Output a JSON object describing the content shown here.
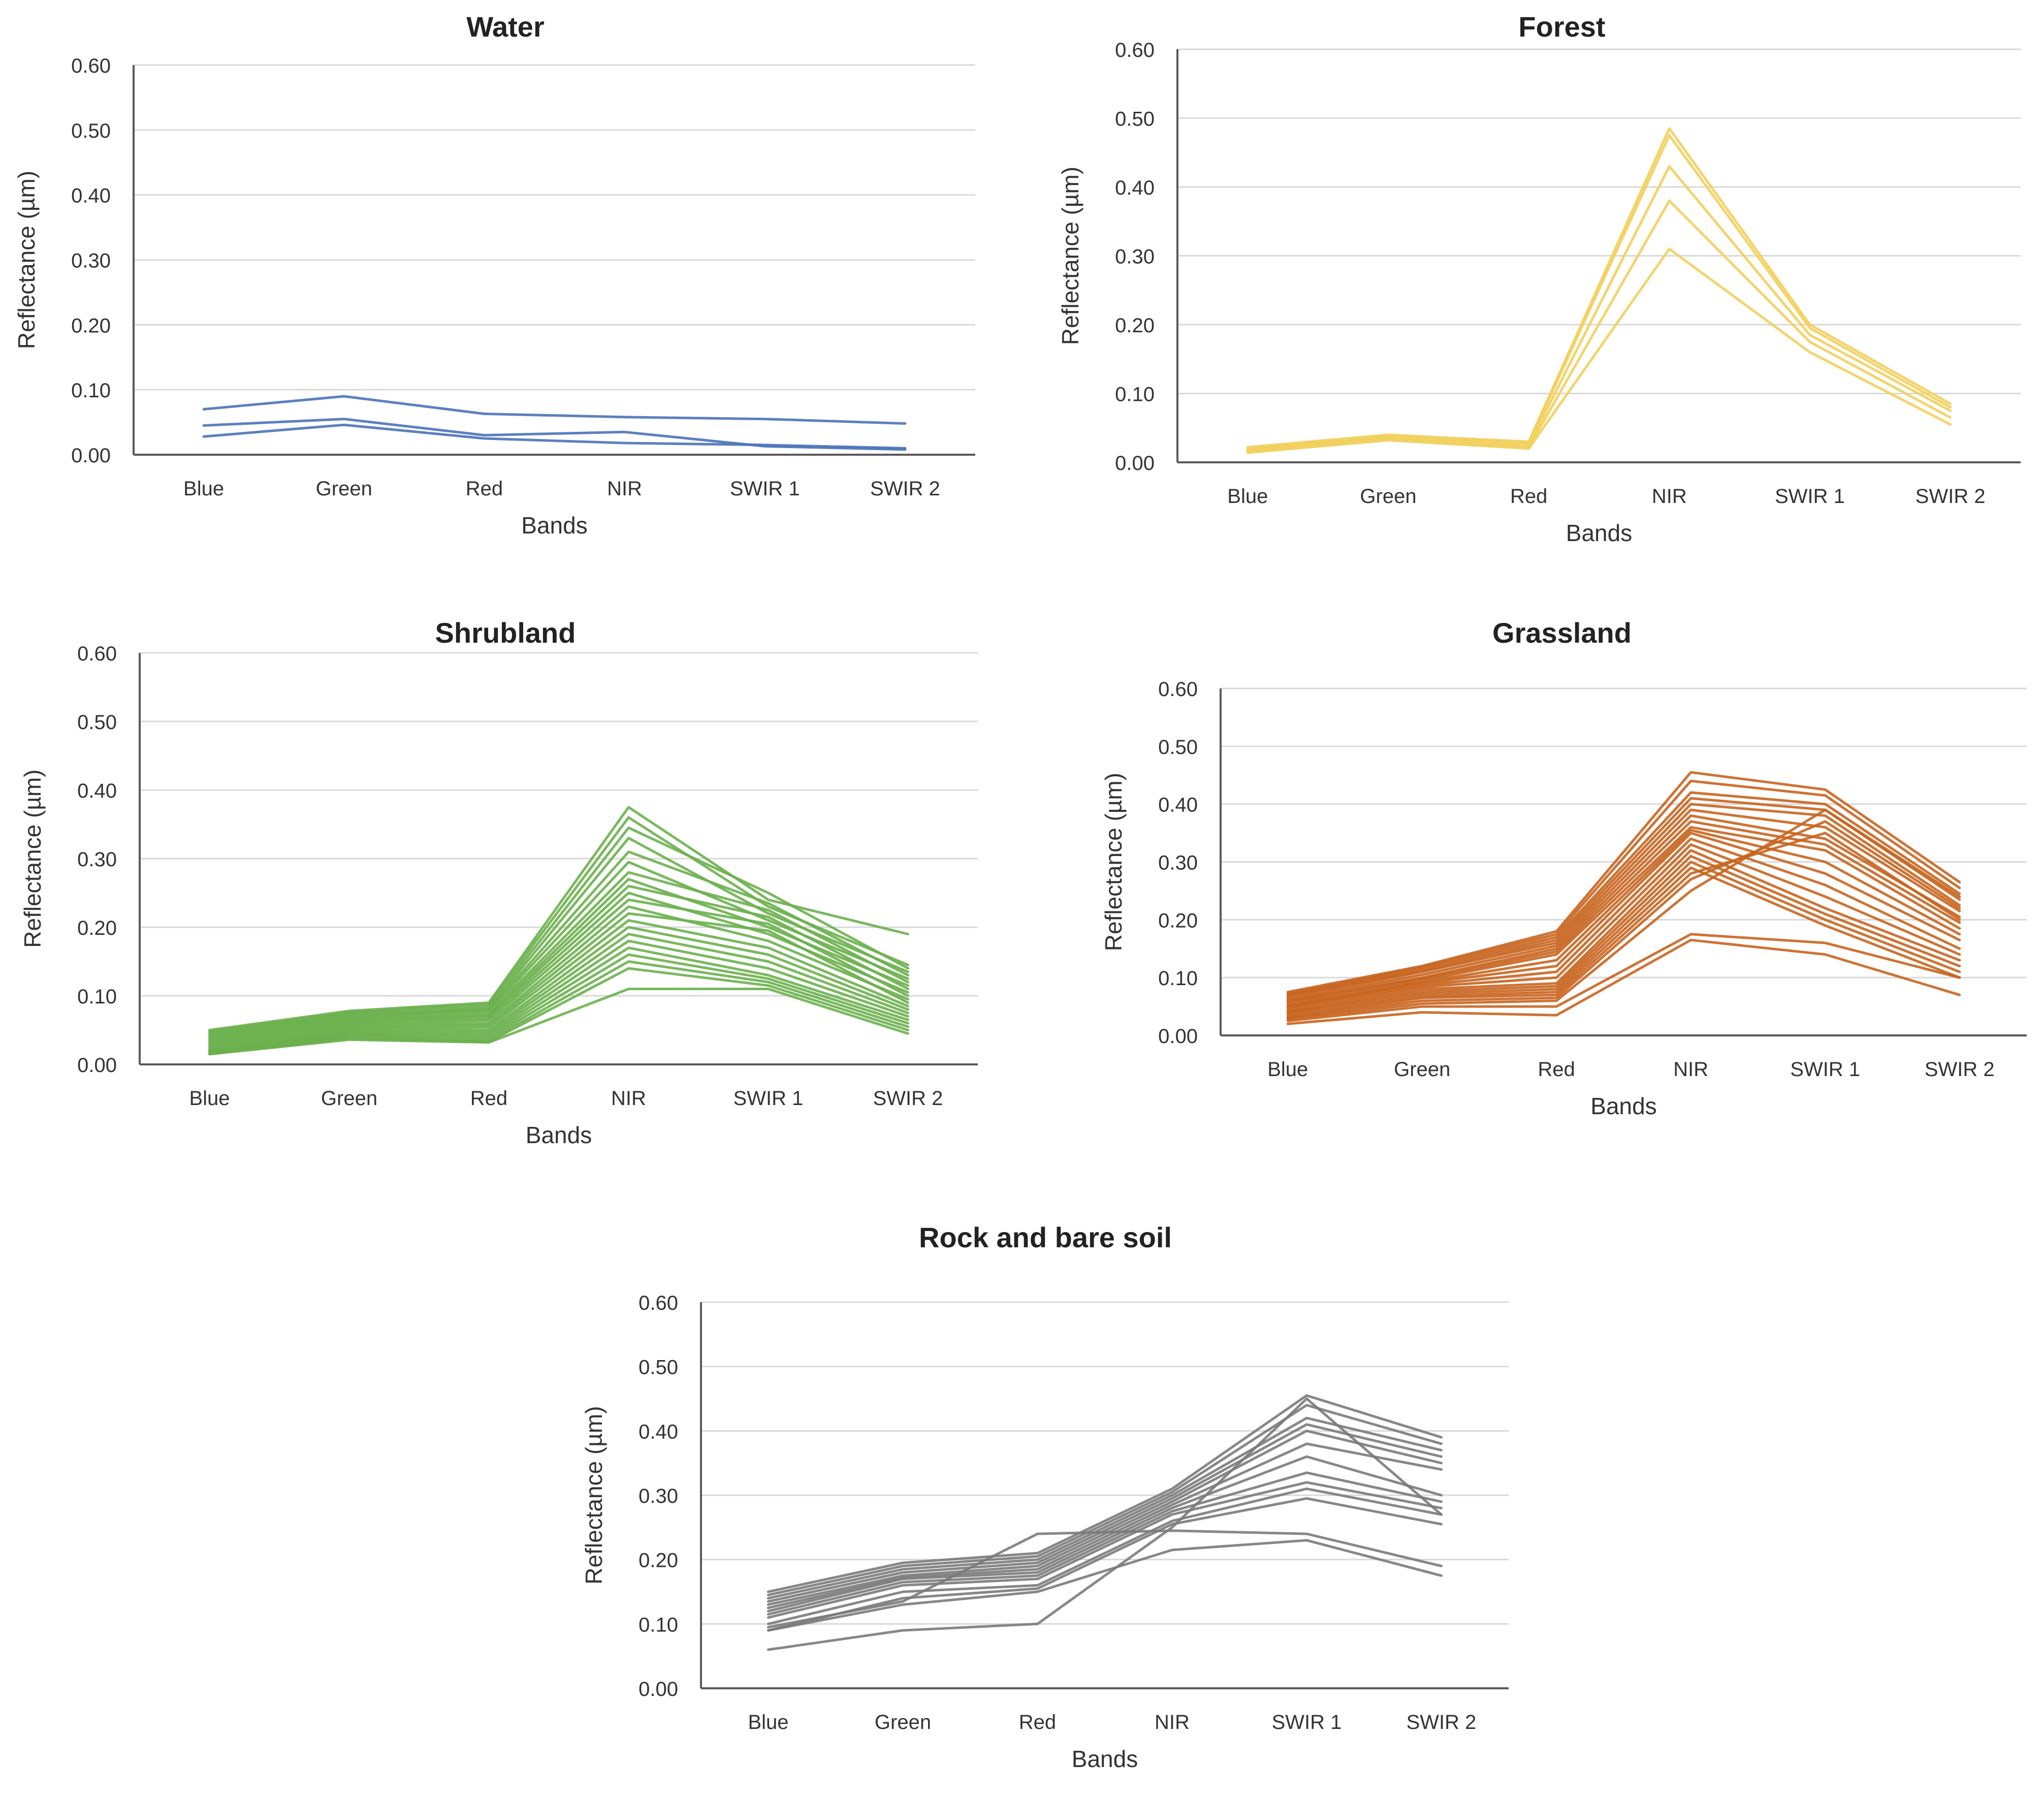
{
  "chart_data": [
    {
      "type": "line",
      "title": "Water",
      "xlabel": "Bands",
      "ylabel": "Reflectance (µm)",
      "categories": [
        "Blue",
        "Green",
        "Red",
        "NIR",
        "SWIR 1",
        "SWIR 2"
      ],
      "ylim": [
        0,
        0.6
      ],
      "yticks": [
        "0.00",
        "0.10",
        "0.20",
        "0.30",
        "0.40",
        "0.50",
        "0.60"
      ],
      "grid": true,
      "color": "#4a72b8",
      "series": [
        {
          "values": [
            0.07,
            0.09,
            0.063,
            0.058,
            0.055,
            0.048
          ]
        },
        {
          "values": [
            0.045,
            0.055,
            0.03,
            0.035,
            0.013,
            0.008
          ]
        },
        {
          "values": [
            0.028,
            0.046,
            0.025,
            0.018,
            0.015,
            0.01
          ]
        }
      ]
    },
    {
      "type": "line",
      "title": "Forest",
      "xlabel": "Bands",
      "ylabel": "Reflectance (µm)",
      "categories": [
        "Blue",
        "Green",
        "Red",
        "NIR",
        "SWIR 1",
        "SWIR 2"
      ],
      "ylim": [
        0,
        0.6
      ],
      "yticks": [
        "0.00",
        "0.10",
        "0.20",
        "0.30",
        "0.40",
        "0.50",
        "0.60"
      ],
      "grid": true,
      "color": "#f2cf5b",
      "series": [
        {
          "values": [
            0.022,
            0.04,
            0.03,
            0.485,
            0.2,
            0.085
          ]
        },
        {
          "values": [
            0.02,
            0.038,
            0.028,
            0.475,
            0.195,
            0.08
          ]
        },
        {
          "values": [
            0.018,
            0.036,
            0.025,
            0.43,
            0.185,
            0.075
          ]
        },
        {
          "values": [
            0.016,
            0.034,
            0.022,
            0.38,
            0.175,
            0.065
          ]
        },
        {
          "values": [
            0.014,
            0.032,
            0.02,
            0.31,
            0.16,
            0.055
          ]
        }
      ]
    },
    {
      "type": "line",
      "title": "Shrubland",
      "xlabel": "Bands",
      "ylabel": "Reflectance (µm)",
      "categories": [
        "Blue",
        "Green",
        "Red",
        "NIR",
        "SWIR 1",
        "SWIR 2"
      ],
      "ylim": [
        0,
        0.6
      ],
      "yticks": [
        "0.00",
        "0.10",
        "0.20",
        "0.30",
        "0.40",
        "0.50",
        "0.60"
      ],
      "grid": true,
      "color": "#6ab04c",
      "series": [
        {
          "values": [
            0.05,
            0.078,
            0.09,
            0.375,
            0.24,
            0.19
          ]
        },
        {
          "values": [
            0.048,
            0.076,
            0.088,
            0.36,
            0.23,
            0.145
          ]
        },
        {
          "values": [
            0.046,
            0.074,
            0.085,
            0.345,
            0.25,
            0.14
          ]
        },
        {
          "values": [
            0.044,
            0.072,
            0.082,
            0.33,
            0.22,
            0.135
          ]
        },
        {
          "values": [
            0.042,
            0.07,
            0.08,
            0.31,
            0.235,
            0.13
          ]
        },
        {
          "values": [
            0.04,
            0.068,
            0.078,
            0.295,
            0.21,
            0.125
          ]
        },
        {
          "values": [
            0.038,
            0.066,
            0.075,
            0.28,
            0.225,
            0.12
          ]
        },
        {
          "values": [
            0.036,
            0.064,
            0.072,
            0.27,
            0.2,
            0.115
          ]
        },
        {
          "values": [
            0.034,
            0.062,
            0.07,
            0.26,
            0.215,
            0.11
          ]
        },
        {
          "values": [
            0.032,
            0.06,
            0.067,
            0.25,
            0.19,
            0.105
          ]
        },
        {
          "values": [
            0.03,
            0.058,
            0.064,
            0.24,
            0.205,
            0.1
          ]
        },
        {
          "values": [
            0.028,
            0.056,
            0.06,
            0.23,
            0.18,
            0.095
          ]
        },
        {
          "values": [
            0.026,
            0.054,
            0.057,
            0.22,
            0.195,
            0.09
          ]
        },
        {
          "values": [
            0.024,
            0.052,
            0.054,
            0.21,
            0.17,
            0.085
          ]
        },
        {
          "values": [
            0.022,
            0.05,
            0.05,
            0.2,
            0.16,
            0.08
          ]
        },
        {
          "values": [
            0.02,
            0.048,
            0.047,
            0.19,
            0.15,
            0.075
          ]
        },
        {
          "values": [
            0.019,
            0.046,
            0.044,
            0.18,
            0.14,
            0.07
          ]
        },
        {
          "values": [
            0.018,
            0.044,
            0.041,
            0.17,
            0.13,
            0.065
          ]
        },
        {
          "values": [
            0.017,
            0.042,
            0.038,
            0.16,
            0.125,
            0.06
          ]
        },
        {
          "values": [
            0.016,
            0.04,
            0.035,
            0.15,
            0.12,
            0.055
          ]
        },
        {
          "values": [
            0.015,
            0.038,
            0.033,
            0.14,
            0.115,
            0.05
          ]
        },
        {
          "values": [
            0.015,
            0.036,
            0.032,
            0.11,
            0.11,
            0.045
          ]
        }
      ]
    },
    {
      "type": "line",
      "title": "Grassland",
      "xlabel": "Bands",
      "ylabel": "Reflectance (µm)",
      "categories": [
        "Blue",
        "Green",
        "Red",
        "NIR",
        "SWIR 1",
        "SWIR 2"
      ],
      "ylim": [
        0,
        0.6
      ],
      "yticks": [
        "0.00",
        "0.10",
        "0.20",
        "0.30",
        "0.40",
        "0.50",
        "0.60"
      ],
      "grid": true,
      "color": "#c8641e",
      "series": [
        {
          "values": [
            0.075,
            0.12,
            0.18,
            0.455,
            0.425,
            0.265
          ]
        },
        {
          "values": [
            0.072,
            0.118,
            0.175,
            0.44,
            0.415,
            0.255
          ]
        },
        {
          "values": [
            0.07,
            0.115,
            0.17,
            0.42,
            0.4,
            0.245
          ]
        },
        {
          "values": [
            0.068,
            0.112,
            0.165,
            0.41,
            0.39,
            0.235
          ]
        },
        {
          "values": [
            0.065,
            0.11,
            0.16,
            0.4,
            0.38,
            0.225
          ]
        },
        {
          "values": [
            0.062,
            0.105,
            0.155,
            0.39,
            0.36,
            0.215
          ]
        },
        {
          "values": [
            0.06,
            0.1,
            0.15,
            0.38,
            0.34,
            0.205
          ]
        },
        {
          "values": [
            0.058,
            0.098,
            0.145,
            0.37,
            0.33,
            0.195
          ]
        },
        {
          "values": [
            0.055,
            0.095,
            0.14,
            0.36,
            0.32,
            0.185
          ]
        },
        {
          "values": [
            0.052,
            0.092,
            0.13,
            0.355,
            0.3,
            0.175
          ]
        },
        {
          "values": [
            0.05,
            0.09,
            0.12,
            0.35,
            0.28,
            0.165
          ]
        },
        {
          "values": [
            0.048,
            0.087,
            0.11,
            0.34,
            0.26,
            0.15
          ]
        },
        {
          "values": [
            0.045,
            0.084,
            0.1,
            0.33,
            0.24,
            0.14
          ]
        },
        {
          "values": [
            0.042,
            0.08,
            0.09,
            0.32,
            0.22,
            0.13
          ]
        },
        {
          "values": [
            0.04,
            0.076,
            0.085,
            0.31,
            0.21,
            0.12
          ]
        },
        {
          "values": [
            0.038,
            0.072,
            0.08,
            0.3,
            0.2,
            0.11
          ]
        },
        {
          "values": [
            0.035,
            0.068,
            0.075,
            0.29,
            0.19,
            0.1
          ]
        },
        {
          "values": [
            0.032,
            0.065,
            0.07,
            0.28,
            0.35,
            0.2
          ]
        },
        {
          "values": [
            0.03,
            0.06,
            0.065,
            0.27,
            0.37,
            0.22
          ]
        },
        {
          "values": [
            0.028,
            0.055,
            0.06,
            0.25,
            0.39,
            0.24
          ]
        },
        {
          "values": [
            0.025,
            0.05,
            0.05,
            0.175,
            0.16,
            0.1
          ]
        },
        {
          "values": [
            0.02,
            0.04,
            0.035,
            0.165,
            0.14,
            0.07
          ]
        }
      ]
    },
    {
      "type": "line",
      "title": "Rock and bare soil",
      "xlabel": "Bands",
      "ylabel": "Reflectance (µm)",
      "categories": [
        "Blue",
        "Green",
        "Red",
        "NIR",
        "SWIR 1",
        "SWIR 2"
      ],
      "ylim": [
        0,
        0.6
      ],
      "yticks": [
        "0.00",
        "0.10",
        "0.20",
        "0.30",
        "0.40",
        "0.50",
        "0.60"
      ],
      "grid": true,
      "color": "#7a7a7a",
      "series": [
        {
          "values": [
            0.15,
            0.195,
            0.21,
            0.31,
            0.455,
            0.39
          ]
        },
        {
          "values": [
            0.145,
            0.19,
            0.205,
            0.305,
            0.44,
            0.38
          ]
        },
        {
          "values": [
            0.14,
            0.185,
            0.2,
            0.3,
            0.42,
            0.37
          ]
        },
        {
          "values": [
            0.135,
            0.18,
            0.195,
            0.295,
            0.41,
            0.36
          ]
        },
        {
          "values": [
            0.13,
            0.175,
            0.19,
            0.29,
            0.4,
            0.35
          ]
        },
        {
          "values": [
            0.125,
            0.172,
            0.185,
            0.285,
            0.38,
            0.34
          ]
        },
        {
          "values": [
            0.12,
            0.17,
            0.18,
            0.28,
            0.36,
            0.3
          ]
        },
        {
          "values": [
            0.115,
            0.165,
            0.175,
            0.275,
            0.335,
            0.29
          ]
        },
        {
          "values": [
            0.11,
            0.16,
            0.17,
            0.27,
            0.32,
            0.28
          ]
        },
        {
          "values": [
            0.1,
            0.15,
            0.16,
            0.26,
            0.31,
            0.27
          ]
        },
        {
          "values": [
            0.09,
            0.14,
            0.155,
            0.255,
            0.295,
            0.255
          ]
        },
        {
          "values": [
            0.095,
            0.135,
            0.24,
            0.245,
            0.24,
            0.19
          ]
        },
        {
          "values": [
            0.09,
            0.13,
            0.15,
            0.215,
            0.23,
            0.175
          ]
        },
        {
          "values": [
            0.06,
            0.09,
            0.1,
            0.25,
            0.45,
            0.27
          ]
        }
      ]
    }
  ]
}
